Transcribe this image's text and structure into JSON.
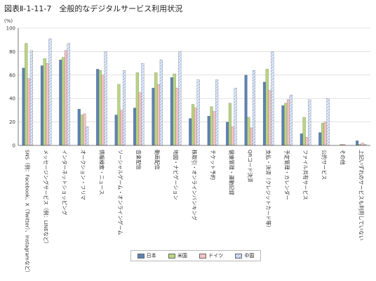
{
  "title": "図表Ⅱ-1-11-7　全般的なデジタルサービス利用状況",
  "chart_data": {
    "type": "bar",
    "ylabel": "(%)",
    "ylim": [
      0,
      100
    ],
    "yticks": [
      0,
      20,
      40,
      60,
      80,
      100
    ],
    "grid": true,
    "legend_position": "bottom",
    "categories": [
      "SNS（例：Facebook、X（Twitter）、Instagramなど）",
      "メッセージングサービス（例：LINEなど）",
      "インターネットショッピング",
      "オークション・フリマ",
      "情報検索・ニュース",
      "ソーシャルゲーム・オンラインゲーム",
      "音楽配信",
      "動画配信",
      "地図・ナビゲーション",
      "株取引・オンラインバンキング",
      "チケット予約",
      "健康管理・運動記録",
      "QRコード決済",
      "支払・決済（クレジットカード等）",
      "予定管理・カレンダー",
      "ファイル共有サービス",
      "公的サービス",
      "その他",
      "上記いずれのサービスも利用していない"
    ],
    "series": [
      {
        "name": "日本",
        "color": "#5b82b5",
        "values": [
          66,
          68,
          73,
          31,
          65,
          26,
          32,
          49,
          58,
          23,
          25,
          20,
          60,
          54,
          34,
          10,
          11,
          0,
          4
        ]
      },
      {
        "name": "米国",
        "color": "#b9d67e",
        "values": [
          87,
          74,
          75,
          26,
          64,
          52,
          62,
          62,
          61,
          35,
          33,
          36,
          24,
          65,
          36,
          24,
          19,
          1,
          1
        ]
      },
      {
        "name": "ドイツ",
        "color": "#f6c1c4",
        "values": [
          57,
          70,
          81,
          27,
          60,
          30,
          45,
          52,
          49,
          32,
          29,
          16,
          15,
          47,
          39,
          7,
          20,
          1,
          2
        ]
      },
      {
        "name": "中国",
        "color": "#a9c1e6",
        "values": [
          81,
          91,
          87,
          16,
          80,
          64,
          70,
          73,
          80,
          56,
          56,
          49,
          64,
          80,
          43,
          39,
          40,
          0,
          1
        ]
      }
    ]
  }
}
